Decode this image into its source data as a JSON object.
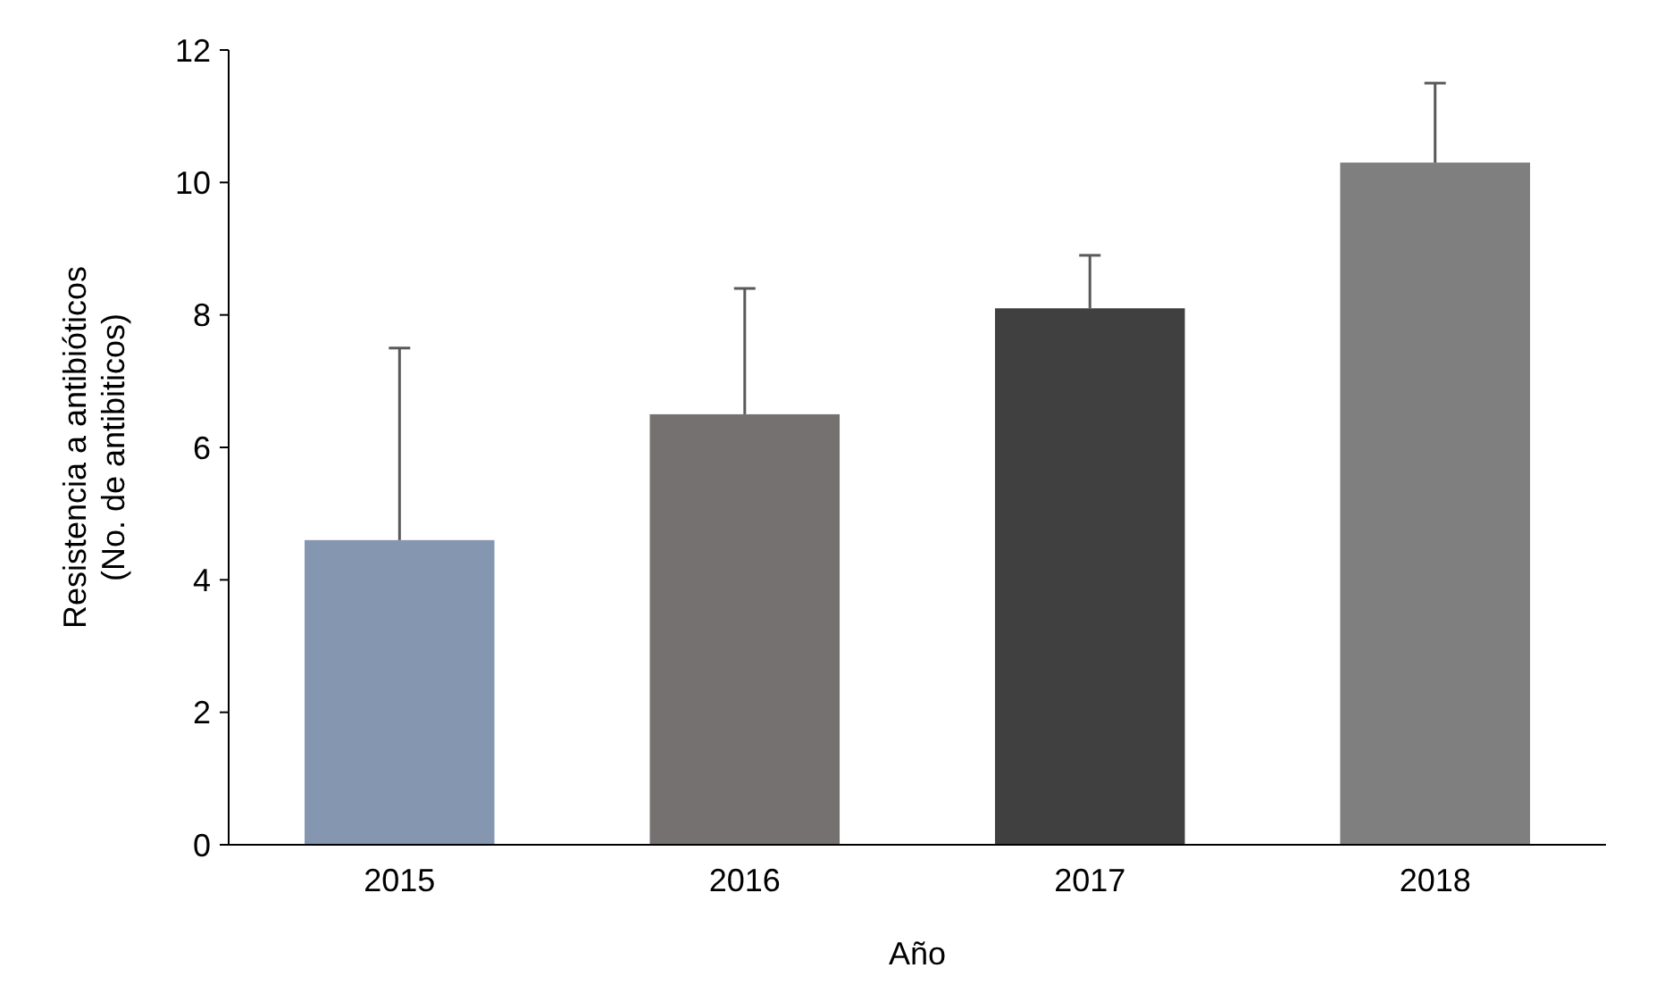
{
  "chart_data": {
    "type": "bar",
    "xlabel": "Año",
    "ylabel": "Resistencia a antibióticos\n(No. de antibiticos)",
    "categories": [
      "2015",
      "2016",
      "2017",
      "2018"
    ],
    "values": [
      4.6,
      6.5,
      8.1,
      10.3
    ],
    "colors": [
      "#8496b0",
      "#767171",
      "#404040",
      "#7f7f7f"
    ],
    "errors": [
      [
        4.6,
        7.5
      ],
      [
        6.5,
        8.4
      ],
      [
        8.1,
        8.9
      ],
      [
        10.3,
        11.5
      ]
    ],
    "ylim": [
      0,
      12
    ],
    "yticks": [
      0,
      2,
      4,
      6,
      8,
      10,
      12
    ]
  }
}
